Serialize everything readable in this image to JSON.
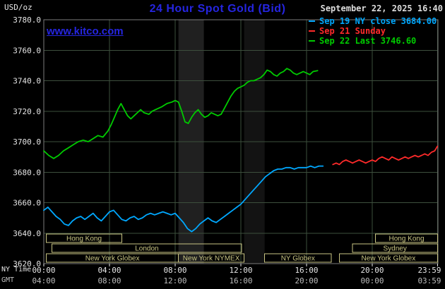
{
  "header": {
    "units_label": "USD/oz",
    "title": "24 Hour Spot Gold (Bid)",
    "datetime": "September 22, 2025 16:40",
    "watermark": "www.kitco.com"
  },
  "colors": {
    "title_blue": "#2525e0",
    "background": "#000000",
    "axis_text": "#e6e6e6",
    "session_tan": "#c9c583"
  },
  "legend": {
    "items": [
      {
        "label": "Sep 19 NY close 3684.00",
        "color": "#00a8ff"
      },
      {
        "label": "Sep 21 Sunday",
        "color": "#ff2a2a"
      },
      {
        "label": "Sep 22 Last 3746.60",
        "color": "#00cc00"
      }
    ]
  },
  "chart_data": {
    "type": "line",
    "title": "24 Hour Spot Gold (Bid)",
    "ylabel": "USD/oz",
    "ylim": [
      3620,
      3780
    ],
    "xlim_hours": [
      0,
      24
    ],
    "grid": true,
    "grid_color": "#3d4f3d",
    "frame_color": "#7d7d7d",
    "session_color": "#c9c583",
    "time_row_labels": [
      "NY Time",
      "GMT"
    ],
    "y_ticks": [
      {
        "value": 3780,
        "label": "3780.0"
      },
      {
        "value": 3760,
        "label": "3760.0"
      },
      {
        "value": 3740,
        "label": "3740.0"
      },
      {
        "value": 3720,
        "label": "3720.0"
      },
      {
        "value": 3700,
        "label": "3700.0"
      },
      {
        "value": 3680,
        "label": "3680.0"
      },
      {
        "value": 3660,
        "label": "3660.0"
      },
      {
        "value": 3640,
        "label": "3640.0"
      },
      {
        "value": 3620,
        "label": "3620.0"
      }
    ],
    "x_ticks": [
      {
        "hour": 0,
        "ny_label": "00:00",
        "gmt_label": "04:00"
      },
      {
        "hour": 4,
        "ny_label": "04:00",
        "gmt_label": "08:00"
      },
      {
        "hour": 8,
        "ny_label": "08:00",
        "gmt_label": "12:00"
      },
      {
        "hour": 12,
        "ny_label": "12:00",
        "gmt_label": "16:00"
      },
      {
        "hour": 16,
        "ny_label": "16:00",
        "gmt_label": "20:00"
      },
      {
        "hour": 20,
        "ny_label": "20:00",
        "gmt_label": "00:00"
      },
      {
        "hour": 23.983,
        "ny_label": "23:59",
        "gmt_label": "03:59"
      }
    ],
    "shaded_bands": [
      {
        "start_hour": 8.2,
        "end_hour": 9.75,
        "color": "#202020"
      },
      {
        "start_hour": 12.2,
        "end_hour": 13.45,
        "color": "#131313"
      }
    ],
    "sessions": [
      {
        "label": "Hong Kong",
        "row": 0,
        "start_hour": 0.15,
        "end_hour": 4.75
      },
      {
        "label": "Hong Kong",
        "row": 0,
        "start_hour": 20.2,
        "end_hour": 23.97
      },
      {
        "label": "London",
        "row": 1,
        "start_hour": 0.5,
        "end_hour": 12.05
      },
      {
        "label": "Sydney",
        "row": 1,
        "start_hour": 18.8,
        "end_hour": 23.97
      },
      {
        "label": "New York Globex",
        "row": 2,
        "start_hour": 0.15,
        "end_hour": 8.2
      },
      {
        "label": "New York NYMEX",
        "row": 2,
        "start_hour": 8.2,
        "end_hour": 12.2
      },
      {
        "label": "NY Globex",
        "row": 2,
        "start_hour": 13.45,
        "end_hour": 17.5
      },
      {
        "label": "New York Globex",
        "row": 2,
        "start_hour": 18.0,
        "end_hour": 23.97
      }
    ],
    "series": [
      {
        "id": "sep19",
        "name": "Sep 19 NY close",
        "color": "#00a8ff",
        "close": 3684.0,
        "points": [
          [
            0,
            3655
          ],
          [
            0.25,
            3657
          ],
          [
            0.5,
            3654
          ],
          [
            0.75,
            3651
          ],
          [
            1,
            3649
          ],
          [
            1.25,
            3646
          ],
          [
            1.5,
            3645
          ],
          [
            1.75,
            3648
          ],
          [
            2,
            3650
          ],
          [
            2.25,
            3651
          ],
          [
            2.5,
            3649
          ],
          [
            2.75,
            3651
          ],
          [
            3,
            3653
          ],
          [
            3.25,
            3650
          ],
          [
            3.5,
            3648
          ],
          [
            3.75,
            3651
          ],
          [
            4,
            3654
          ],
          [
            4.25,
            3655
          ],
          [
            4.5,
            3652
          ],
          [
            4.75,
            3649
          ],
          [
            5,
            3648
          ],
          [
            5.25,
            3650
          ],
          [
            5.5,
            3651
          ],
          [
            5.75,
            3649
          ],
          [
            6,
            3650
          ],
          [
            6.25,
            3652
          ],
          [
            6.5,
            3653
          ],
          [
            6.75,
            3652
          ],
          [
            7,
            3653
          ],
          [
            7.25,
            3654
          ],
          [
            7.5,
            3653
          ],
          [
            7.75,
            3652
          ],
          [
            8,
            3653
          ],
          [
            8.25,
            3650
          ],
          [
            8.5,
            3647
          ],
          [
            8.75,
            3643
          ],
          [
            9,
            3641
          ],
          [
            9.25,
            3643
          ],
          [
            9.5,
            3646
          ],
          [
            9.75,
            3648
          ],
          [
            10,
            3650
          ],
          [
            10.25,
            3648
          ],
          [
            10.5,
            3647
          ],
          [
            10.75,
            3649
          ],
          [
            11,
            3651
          ],
          [
            11.25,
            3653
          ],
          [
            11.5,
            3655
          ],
          [
            11.75,
            3657
          ],
          [
            12,
            3659
          ],
          [
            12.25,
            3662
          ],
          [
            12.5,
            3665
          ],
          [
            12.75,
            3668
          ],
          [
            13,
            3671
          ],
          [
            13.25,
            3674
          ],
          [
            13.5,
            3677
          ],
          [
            13.75,
            3679
          ],
          [
            14,
            3681
          ],
          [
            14.25,
            3682
          ],
          [
            14.5,
            3682
          ],
          [
            14.75,
            3683
          ],
          [
            15,
            3683
          ],
          [
            15.25,
            3682
          ],
          [
            15.5,
            3683
          ],
          [
            15.75,
            3683
          ],
          [
            16,
            3683
          ],
          [
            16.25,
            3684
          ],
          [
            16.5,
            3683
          ],
          [
            16.75,
            3684
          ],
          [
            17,
            3684
          ]
        ]
      },
      {
        "id": "sep21",
        "name": "Sep 21 Sunday",
        "color": "#ff2a2a",
        "points": [
          [
            17.6,
            3685
          ],
          [
            17.8,
            3686
          ],
          [
            18,
            3685
          ],
          [
            18.2,
            3687
          ],
          [
            18.4,
            3688
          ],
          [
            18.6,
            3687
          ],
          [
            18.8,
            3686
          ],
          [
            19,
            3687
          ],
          [
            19.2,
            3688
          ],
          [
            19.4,
            3687
          ],
          [
            19.6,
            3686
          ],
          [
            19.8,
            3687
          ],
          [
            20,
            3688
          ],
          [
            20.2,
            3687
          ],
          [
            20.4,
            3689
          ],
          [
            20.6,
            3690
          ],
          [
            20.8,
            3689
          ],
          [
            21,
            3688
          ],
          [
            21.2,
            3690
          ],
          [
            21.4,
            3689
          ],
          [
            21.6,
            3688
          ],
          [
            21.8,
            3689
          ],
          [
            22,
            3690
          ],
          [
            22.2,
            3689
          ],
          [
            22.4,
            3690
          ],
          [
            22.6,
            3691
          ],
          [
            22.8,
            3690
          ],
          [
            23,
            3691
          ],
          [
            23.2,
            3692
          ],
          [
            23.4,
            3691
          ],
          [
            23.6,
            3693
          ],
          [
            23.8,
            3694
          ],
          [
            23.97,
            3697
          ]
        ]
      },
      {
        "id": "sep22",
        "name": "Sep 22 Last",
        "color": "#00cc00",
        "last": 3746.6,
        "points": [
          [
            0,
            3694
          ],
          [
            0.3,
            3691
          ],
          [
            0.6,
            3689
          ],
          [
            0.9,
            3691
          ],
          [
            1.2,
            3694
          ],
          [
            1.5,
            3696
          ],
          [
            1.8,
            3698
          ],
          [
            2.1,
            3700
          ],
          [
            2.4,
            3701
          ],
          [
            2.7,
            3700
          ],
          [
            3,
            3702
          ],
          [
            3.3,
            3704
          ],
          [
            3.6,
            3703
          ],
          [
            3.9,
            3707
          ],
          [
            4.1,
            3711
          ],
          [
            4.3,
            3716
          ],
          [
            4.5,
            3721
          ],
          [
            4.7,
            3725
          ],
          [
            4.9,
            3721
          ],
          [
            5.1,
            3717
          ],
          [
            5.3,
            3715
          ],
          [
            5.5,
            3717
          ],
          [
            5.7,
            3719
          ],
          [
            5.9,
            3721
          ],
          [
            6.1,
            3719
          ],
          [
            6.4,
            3718
          ],
          [
            6.6,
            3720
          ],
          [
            6.8,
            3721
          ],
          [
            7,
            3722
          ],
          [
            7.2,
            3723
          ],
          [
            7.5,
            3725
          ],
          [
            7.8,
            3726
          ],
          [
            8,
            3727
          ],
          [
            8.2,
            3726
          ],
          [
            8.4,
            3720
          ],
          [
            8.6,
            3713
          ],
          [
            8.8,
            3712
          ],
          [
            9,
            3716
          ],
          [
            9.2,
            3719
          ],
          [
            9.4,
            3721
          ],
          [
            9.6,
            3718
          ],
          [
            9.8,
            3716
          ],
          [
            10,
            3717
          ],
          [
            10.2,
            3719
          ],
          [
            10.4,
            3718
          ],
          [
            10.6,
            3717
          ],
          [
            10.8,
            3718
          ],
          [
            11,
            3722
          ],
          [
            11.2,
            3726
          ],
          [
            11.4,
            3730
          ],
          [
            11.6,
            3733
          ],
          [
            11.8,
            3735
          ],
          [
            12,
            3736
          ],
          [
            12.2,
            3737
          ],
          [
            12.4,
            3739
          ],
          [
            12.6,
            3740
          ],
          [
            12.8,
            3740
          ],
          [
            13,
            3741
          ],
          [
            13.2,
            3742
          ],
          [
            13.4,
            3744
          ],
          [
            13.6,
            3747
          ],
          [
            13.8,
            3746
          ],
          [
            14,
            3744
          ],
          [
            14.2,
            3743
          ],
          [
            14.4,
            3745
          ],
          [
            14.6,
            3746
          ],
          [
            14.8,
            3748
          ],
          [
            15,
            3747
          ],
          [
            15.2,
            3745
          ],
          [
            15.4,
            3744
          ],
          [
            15.6,
            3745
          ],
          [
            15.8,
            3746
          ],
          [
            16,
            3745
          ],
          [
            16.2,
            3744
          ],
          [
            16.4,
            3746
          ],
          [
            16.67,
            3746.6
          ]
        ]
      }
    ]
  }
}
